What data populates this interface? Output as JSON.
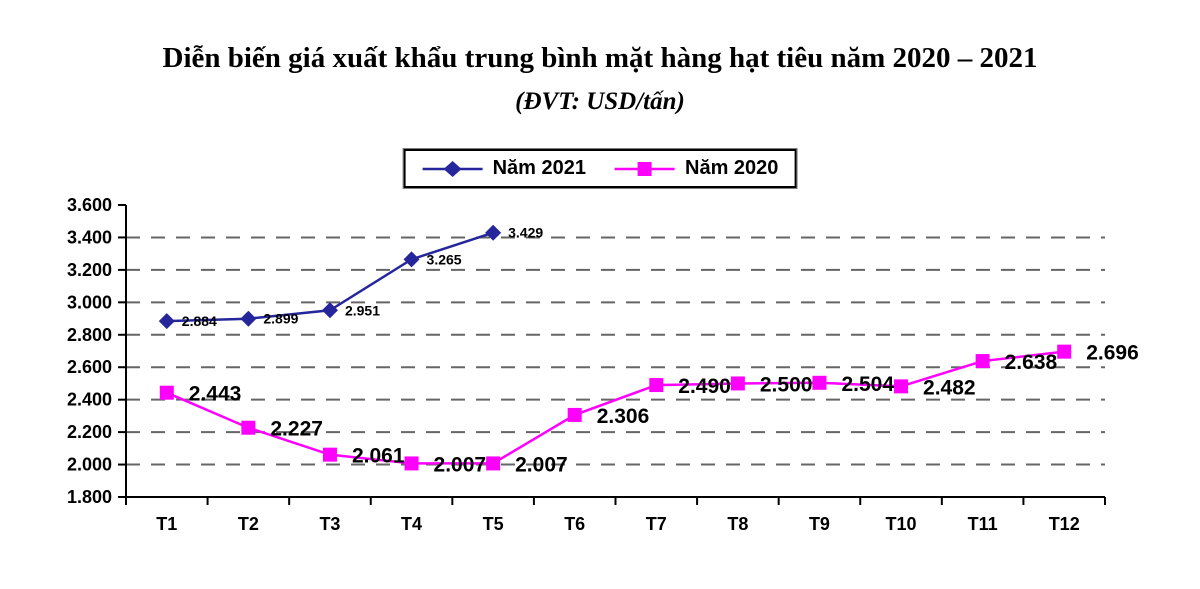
{
  "chart_data": {
    "type": "line",
    "title": "Diễn biến giá xuất khẩu trung bình mặt hàng hạt tiêu năm 2020 – 2021",
    "subtitle": "(ĐVT: USD/tấn)",
    "unit": "USD/tấn",
    "categories": [
      "T1",
      "T2",
      "T3",
      "T4",
      "T5",
      "T6",
      "T7",
      "T8",
      "T9",
      "T10",
      "T11",
      "T12"
    ],
    "y_axis": {
      "min": 1800,
      "max": 3600,
      "step": 200,
      "tick_labels": [
        "1.800",
        "2.000",
        "2.200",
        "2.400",
        "2.600",
        "2.800",
        "3.000",
        "3.200",
        "3.400",
        "3.600"
      ]
    },
    "grid": "dashed-horizontal",
    "legend_position": "top-center",
    "colors": {
      "axis": "#000000",
      "gridline": "#666666",
      "text": "#000000"
    },
    "series": [
      {
        "name": "Năm 2021",
        "color": "#26269C",
        "marker": "diamond",
        "values": [
          2884,
          2899,
          2951,
          3265,
          3429,
          null,
          null,
          null,
          null,
          null,
          null,
          null
        ],
        "labels": [
          "2.884",
          "2.899",
          "2.951",
          "3.265",
          "3.429",
          "",
          "",
          "",
          "",
          "",
          "",
          ""
        ]
      },
      {
        "name": "Năm 2020",
        "color": "#FF00FF",
        "marker": "square",
        "values": [
          2443,
          2227,
          2061,
          2007,
          2007,
          2306,
          2490,
          2500,
          2504,
          2482,
          2638,
          2696
        ],
        "labels": [
          "2.443",
          "2.227",
          "2.061",
          "2.007",
          "2.007",
          "2.306",
          "2.490",
          "2.500",
          "2.504",
          "2.482",
          "2.638",
          "2.696"
        ]
      }
    ]
  }
}
